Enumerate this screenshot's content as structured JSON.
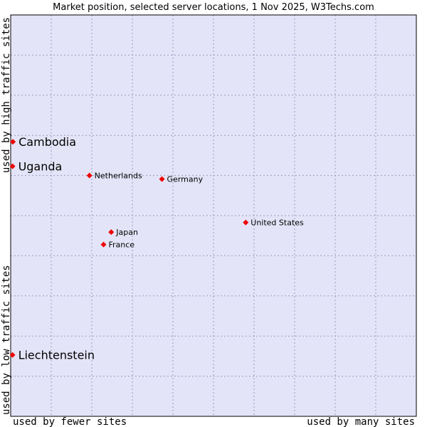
{
  "chart_data": {
    "type": "scatter",
    "title": "Market position, selected server locations, 1 Nov 2025, W3Techs.com",
    "xlabel_low": "used by fewer sites",
    "xlabel_high": "used by many sites",
    "ylabel_low": "used by low traffic sites",
    "ylabel_high": "used by high traffic sites",
    "xlim": [
      0,
      1
    ],
    "ylim": [
      0,
      1
    ],
    "grid": true,
    "colors": {
      "plot_bg": "#e4e4f8",
      "grid": "#9a9ac0",
      "point": "#ee0000",
      "border": "#000000"
    },
    "points": [
      {
        "name": "Cambodia",
        "x": 0.002,
        "y": 0.684,
        "emphasis": true
      },
      {
        "name": "Uganda",
        "x": 0.001,
        "y": 0.623,
        "emphasis": true
      },
      {
        "name": "Netherlands",
        "x": 0.192,
        "y": 0.6,
        "emphasis": false
      },
      {
        "name": "Germany",
        "x": 0.372,
        "y": 0.591,
        "emphasis": false
      },
      {
        "name": "United States",
        "x": 0.58,
        "y": 0.483,
        "emphasis": false
      },
      {
        "name": "Japan",
        "x": 0.246,
        "y": 0.459,
        "emphasis": false
      },
      {
        "name": "France",
        "x": 0.227,
        "y": 0.428,
        "emphasis": false
      },
      {
        "name": "Liechtenstein",
        "x": 0.001,
        "y": 0.153,
        "emphasis": true
      }
    ]
  }
}
